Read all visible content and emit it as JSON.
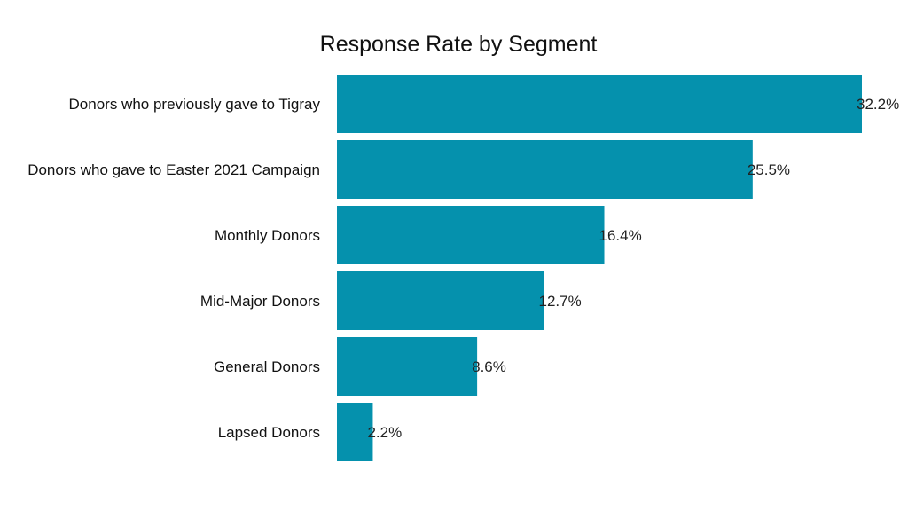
{
  "chart_data": {
    "type": "bar",
    "orientation": "horizontal",
    "title": "Response Rate by Segment",
    "xlabel": "",
    "ylabel": "",
    "categories": [
      "Donors who previously gave to Tigray",
      "Donors who gave to Easter 2021 Campaign",
      "Monthly Donors",
      "Mid-Major Donors",
      "General Donors",
      "Lapsed Donors"
    ],
    "values": [
      32.2,
      25.5,
      16.4,
      12.7,
      8.6,
      2.2
    ],
    "value_labels": [
      "32.2%",
      "25.5%",
      "16.4%",
      "12.7%",
      "8.6%",
      "2.2%"
    ],
    "unit": "%",
    "xlim": [
      0,
      32.2
    ],
    "grid": false,
    "bar_color": "#0591ad"
  }
}
